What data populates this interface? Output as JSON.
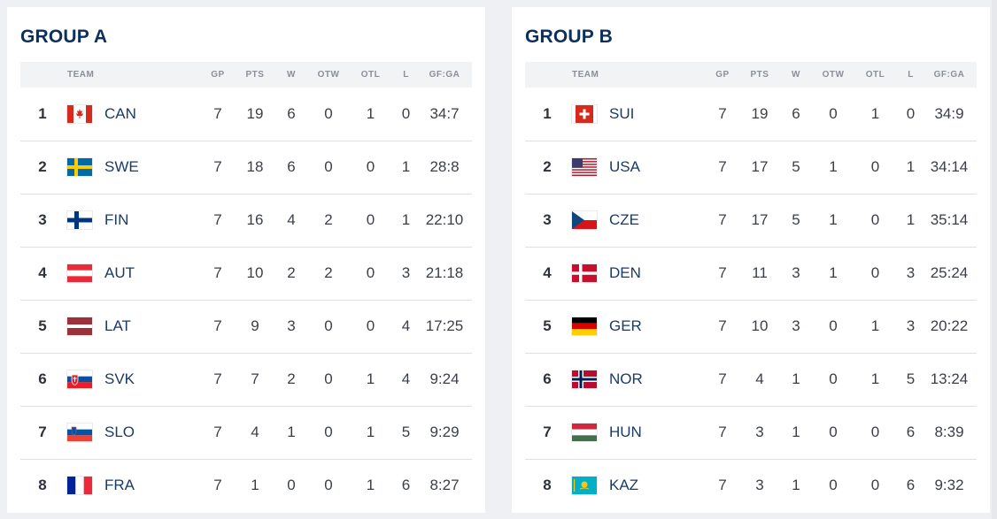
{
  "columns": {
    "team": "TEAM",
    "gp": "GP",
    "pts": "PTS",
    "w": "W",
    "otw": "OTW",
    "otl": "OTL",
    "l": "L",
    "gfga": "GF:GA"
  },
  "group_a": {
    "title": "GROUP A",
    "rows": [
      {
        "rank": "1",
        "flag": "canada-flag-icon",
        "team": "CAN",
        "gp": "7",
        "pts": "19",
        "w": "6",
        "otw": "0",
        "otl": "1",
        "l": "0",
        "gfga": "34:7"
      },
      {
        "rank": "2",
        "flag": "sweden-flag-icon",
        "team": "SWE",
        "gp": "7",
        "pts": "18",
        "w": "6",
        "otw": "0",
        "otl": "0",
        "l": "1",
        "gfga": "28:8"
      },
      {
        "rank": "3",
        "flag": "finland-flag-icon",
        "team": "FIN",
        "gp": "7",
        "pts": "16",
        "w": "4",
        "otw": "2",
        "otl": "0",
        "l": "1",
        "gfga": "22:10"
      },
      {
        "rank": "4",
        "flag": "austria-flag-icon",
        "team": "AUT",
        "gp": "7",
        "pts": "10",
        "w": "2",
        "otw": "2",
        "otl": "0",
        "l": "3",
        "gfga": "21:18"
      },
      {
        "rank": "5",
        "flag": "latvia-flag-icon",
        "team": "LAT",
        "gp": "7",
        "pts": "9",
        "w": "3",
        "otw": "0",
        "otl": "0",
        "l": "4",
        "gfga": "17:25"
      },
      {
        "rank": "6",
        "flag": "slovakia-flag-icon",
        "team": "SVK",
        "gp": "7",
        "pts": "7",
        "w": "2",
        "otw": "0",
        "otl": "1",
        "l": "4",
        "gfga": "9:24"
      },
      {
        "rank": "7",
        "flag": "slovenia-flag-icon",
        "team": "SLO",
        "gp": "7",
        "pts": "4",
        "w": "1",
        "otw": "0",
        "otl": "1",
        "l": "5",
        "gfga": "9:29"
      },
      {
        "rank": "8",
        "flag": "france-flag-icon",
        "team": "FRA",
        "gp": "7",
        "pts": "1",
        "w": "0",
        "otw": "0",
        "otl": "1",
        "l": "6",
        "gfga": "8:27"
      }
    ]
  },
  "group_b": {
    "title": "GROUP B",
    "rows": [
      {
        "rank": "1",
        "flag": "switzerland-flag-icon",
        "team": "SUI",
        "gp": "7",
        "pts": "19",
        "w": "6",
        "otw": "0",
        "otl": "1",
        "l": "0",
        "gfga": "34:9"
      },
      {
        "rank": "2",
        "flag": "usa-flag-icon",
        "team": "USA",
        "gp": "7",
        "pts": "17",
        "w": "5",
        "otw": "1",
        "otl": "0",
        "l": "1",
        "gfga": "34:14"
      },
      {
        "rank": "3",
        "flag": "czechia-flag-icon",
        "team": "CZE",
        "gp": "7",
        "pts": "17",
        "w": "5",
        "otw": "1",
        "otl": "0",
        "l": "1",
        "gfga": "35:14"
      },
      {
        "rank": "4",
        "flag": "denmark-flag-icon",
        "team": "DEN",
        "gp": "7",
        "pts": "11",
        "w": "3",
        "otw": "1",
        "otl": "0",
        "l": "3",
        "gfga": "25:24"
      },
      {
        "rank": "5",
        "flag": "germany-flag-icon",
        "team": "GER",
        "gp": "7",
        "pts": "10",
        "w": "3",
        "otw": "0",
        "otl": "1",
        "l": "3",
        "gfga": "20:22"
      },
      {
        "rank": "6",
        "flag": "norway-flag-icon",
        "team": "NOR",
        "gp": "7",
        "pts": "4",
        "w": "1",
        "otw": "0",
        "otl": "1",
        "l": "5",
        "gfga": "13:24"
      },
      {
        "rank": "7",
        "flag": "hungary-flag-icon",
        "team": "HUN",
        "gp": "7",
        "pts": "3",
        "w": "1",
        "otw": "0",
        "otl": "0",
        "l": "6",
        "gfga": "8:39"
      },
      {
        "rank": "8",
        "flag": "kazakhstan-flag-icon",
        "team": "KAZ",
        "gp": "7",
        "pts": "3",
        "w": "1",
        "otw": "0",
        "otl": "0",
        "l": "6",
        "gfga": "9:32"
      }
    ]
  },
  "colors": {
    "title": "#0d2f5c",
    "team_code": "#1a3b66",
    "header_bg": "#f2f3f5"
  }
}
